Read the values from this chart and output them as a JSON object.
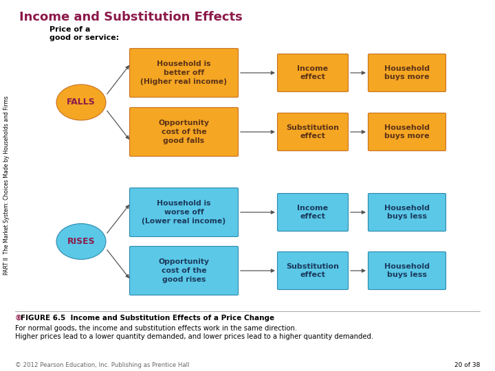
{
  "title": "Income and Substitution Effects",
  "title_color": "#8B1A4A",
  "bg_color": "#FFFFFF",
  "price_label_line1": "Price of a",
  "price_label_line2": "good or service:",
  "falls_label": "FALLS",
  "rises_label": "RISES",
  "circle_color_orange": "#F5A623",
  "circle_color_blue": "#5BC8E8",
  "circle_text_color": "#8B1A4A",
  "orange_box_color": "#F5A623",
  "orange_text_color": "#5C3317",
  "blue_box_color": "#5BC8E8",
  "blue_text_color": "#1A3A5C",
  "edge_color_orange": "#C87020",
  "edge_color_blue": "#2A88AA",
  "arrow_color": "#555555",
  "box1_text_r0": "Household is\nbetter off\n(Higher real income)",
  "box2_text_r0": "Income\neffect",
  "box3_text_r0": "Household\nbuys more",
  "box1_text_r1": "Opportunity\ncost of the\ngood falls",
  "box2_text_r1": "Substitution\neffect",
  "box3_text_r1": "Household\nbuys more",
  "box1_text_r2": "Household is\nworse off\n(Lower real income)",
  "box2_text_r2": "Income\neffect",
  "box3_text_r2": "Household\nbuys less",
  "box1_text_r3": "Opportunity\ncost of the\ngood rises",
  "box2_text_r3": "Substitution\neffect",
  "box3_text_r3": "Household\nbuys less",
  "figure_symbol": "ɸ",
  "caption_bold": "FIGURE 6.5  Income and Substitution Effects of a Price Change",
  "caption_line1": "For normal goods, the income and substitution effects work in the same direction.",
  "caption_line2": "Higher prices lead to a lower quantity demanded, and lower prices lead to a higher quantity demanded.",
  "copyright": "© 2012 Pearson Education, Inc. Publishing as Prentice Hall",
  "page": "20 of 38",
  "sidebar": "PART II  The Market System: Choices Made by Households and Firms"
}
